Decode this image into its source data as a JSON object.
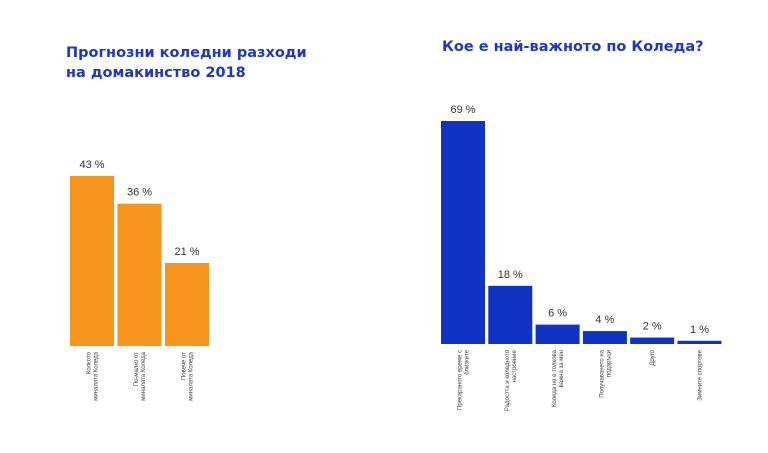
{
  "chart_data": [
    {
      "type": "bar",
      "title_lines": [
        "Прогнозни коледни разходи",
        "на домакинство 2018"
      ],
      "color": "#f7941d",
      "categories": [
        [
          "Колкото",
          "миналата Коледа"
        ],
        [
          "По-малко от",
          "миналата Коледа"
        ],
        [
          "Повече от",
          "миналата Коледа"
        ]
      ],
      "values": [
        43,
        36,
        21
      ],
      "value_labels": [
        "43 %",
        "36 %",
        "21 %"
      ],
      "ylim": [
        0,
        43
      ]
    },
    {
      "type": "bar",
      "title_lines": [
        "Кое е най-важното по Коледа?"
      ],
      "color": "#1033c4",
      "categories": [
        [
          "Прекараното време с",
          "близките"
        ],
        [
          "Радостта и коледното",
          "настроение"
        ],
        [
          "Коледа не е толкова",
          "важна за мен"
        ],
        [
          "Получаването на",
          "подаръци"
        ],
        [
          "Друго"
        ],
        [
          "Зимните спортове"
        ]
      ],
      "values": [
        69,
        18,
        6,
        4,
        2,
        1
      ],
      "value_labels": [
        "69 %",
        "18 %",
        "6 %",
        "4 %",
        "2 %",
        "1 %"
      ],
      "ylim": [
        0,
        69
      ]
    }
  ]
}
